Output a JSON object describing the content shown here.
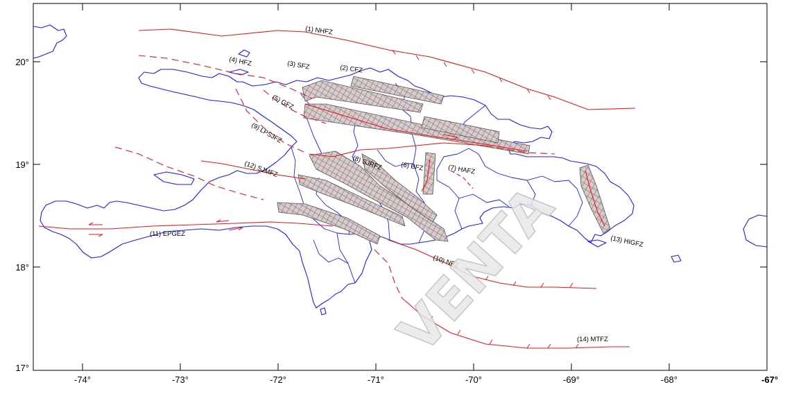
{
  "map": {
    "lon_ticks": [
      "-74°",
      "-73°",
      "-72°",
      "-71°",
      "-70°",
      "-69°",
      "-68°",
      "-67°"
    ],
    "lat_ticks": [
      "20°",
      "19°",
      "18°",
      "17°"
    ],
    "lon_range": [
      -74.5,
      -67
    ],
    "lat_range": [
      17,
      20.5
    ],
    "colors": {
      "coast": "#1a1aff",
      "fault": "#e8141a",
      "hatch_fill": "#c8c8c8",
      "frame": "#000000"
    },
    "watermark": "VENTA",
    "faults": [
      {
        "id": "nhfz",
        "label": "(1) NHFZ"
      },
      {
        "id": "cfz",
        "label": "(2) CFZ"
      },
      {
        "id": "sfz",
        "label": "(3) SFZ"
      },
      {
        "id": "hfz",
        "label": "(4) HFZ"
      },
      {
        "id": "gfz",
        "label": "(5) GFZ"
      },
      {
        "id": "bfz",
        "label": "(6) BFZ"
      },
      {
        "id": "hafz",
        "label": "(7) HAFZ"
      },
      {
        "id": "sjrfz",
        "label": "(8) SJRFZ"
      },
      {
        "id": "lpsjfz",
        "label": "(9) LPSJFZ"
      },
      {
        "id": "nfz",
        "label": "(10) NFZ"
      },
      {
        "id": "epgez",
        "label": "(11) EPGEZ"
      },
      {
        "id": "sjmfz",
        "label": "(12) SJMFZ"
      },
      {
        "id": "higfz",
        "label": "(13) HIGFZ"
      },
      {
        "id": "mtfz",
        "label": "(14) MTFZ"
      }
    ]
  }
}
